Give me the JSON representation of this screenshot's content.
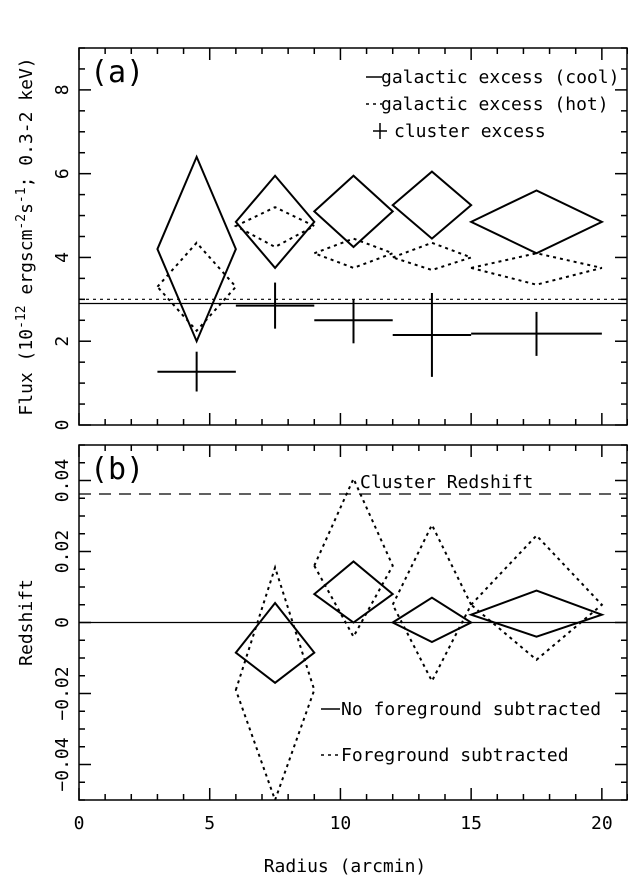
{
  "x_axis": {
    "label": "Radius (arcmin)",
    "range": [
      0,
      21
    ],
    "ticks": [
      0,
      5,
      10,
      15,
      20
    ],
    "tick_labels": [
      "0",
      "5",
      "10",
      "15",
      "20"
    ]
  },
  "chart_data": [
    {
      "type": "scatter",
      "panel": "(a)",
      "ylabel": "Flux (10^-12 ergscm^-2s^-1; 0.3-2 keV)",
      "xlim": [
        0,
        21
      ],
      "ylim": [
        0,
        9
      ],
      "yticks": [
        0,
        2,
        4,
        6,
        8
      ],
      "ytick_labels": [
        "0",
        "2",
        "4",
        "6",
        "8"
      ],
      "legend": {
        "placement": "top-right",
        "entries": [
          "galactic excess (cool)",
          "galactic excess (hot)",
          "cluster excess"
        ]
      },
      "reference_lines": [
        {
          "y": 2.9,
          "style": "solid"
        },
        {
          "y": 3.0,
          "style": "dotted"
        }
      ],
      "series": [
        {
          "name": "galactic excess (cool)",
          "style": "solid",
          "marker": "diamond",
          "points": [
            {
              "x": 4.5,
              "xerr": 1.5,
              "y": 4.2,
              "ylo": 2.0,
              "yhi": 6.4
            },
            {
              "x": 7.5,
              "xerr": 1.5,
              "y": 4.85,
              "ylo": 3.75,
              "yhi": 5.95
            },
            {
              "x": 10.5,
              "xerr": 1.5,
              "y": 5.1,
              "ylo": 4.25,
              "yhi": 5.95
            },
            {
              "x": 13.5,
              "xerr": 1.5,
              "y": 5.25,
              "ylo": 4.45,
              "yhi": 6.05
            },
            {
              "x": 17.5,
              "xerr": 2.5,
              "y": 4.85,
              "ylo": 4.1,
              "yhi": 5.6
            }
          ]
        },
        {
          "name": "galactic excess (hot)",
          "style": "dotted",
          "marker": "diamond",
          "points": [
            {
              "x": 4.5,
              "xerr": 1.5,
              "y": 3.3,
              "ylo": 2.25,
              "yhi": 4.35
            },
            {
              "x": 7.5,
              "xerr": 1.5,
              "y": 4.75,
              "ylo": 4.25,
              "yhi": 5.2
            },
            {
              "x": 10.5,
              "xerr": 1.5,
              "y": 4.1,
              "ylo": 3.75,
              "yhi": 4.45
            },
            {
              "x": 13.5,
              "xerr": 1.5,
              "y": 4.0,
              "ylo": 3.7,
              "yhi": 4.35
            },
            {
              "x": 17.5,
              "xerr": 2.5,
              "y": 3.75,
              "ylo": 3.35,
              "yhi": 4.1
            }
          ]
        },
        {
          "name": "cluster excess",
          "style": "solid",
          "marker": "cross",
          "points": [
            {
              "x": 4.5,
              "xerr": 1.5,
              "y": 1.27,
              "ylo": 0.8,
              "yhi": 1.75
            },
            {
              "x": 7.5,
              "xerr": 1.5,
              "y": 2.85,
              "ylo": 2.3,
              "yhi": 3.4
            },
            {
              "x": 10.5,
              "xerr": 1.5,
              "y": 2.5,
              "ylo": 1.95,
              "yhi": 3.0
            },
            {
              "x": 13.5,
              "xerr": 1.5,
              "y": 2.15,
              "ylo": 1.15,
              "yhi": 3.15
            },
            {
              "x": 17.5,
              "xerr": 2.5,
              "y": 2.18,
              "ylo": 1.65,
              "yhi": 2.7
            }
          ]
        }
      ]
    },
    {
      "type": "scatter",
      "panel": "(b)",
      "ylabel": "Redshift",
      "xlim": [
        0,
        21
      ],
      "ylim": [
        -0.05,
        0.05
      ],
      "yticks": [
        -0.04,
        -0.02,
        0,
        0.02,
        0.04
      ],
      "ytick_labels": [
        "−0.04",
        "−0.02",
        "0",
        "0.02",
        "0.04"
      ],
      "legend": {
        "placement": "bottom-right",
        "entries": [
          "No foreground subtracted",
          "Foreground subtracted"
        ]
      },
      "reference_lines": [
        {
          "y": 0,
          "style": "solid"
        },
        {
          "y": 0.0362,
          "style": "dashed",
          "label": "Cluster Redshift"
        }
      ],
      "series": [
        {
          "name": "No foreground subtracted",
          "style": "solid",
          "marker": "diamond",
          "points": [
            {
              "x": 7.5,
              "xerr": 1.5,
              "y": -0.0085,
              "ylo": -0.017,
              "yhi": 0.0055
            },
            {
              "x": 10.5,
              "xerr": 1.5,
              "y": 0.008,
              "ylo": 0.0,
              "yhi": 0.0172
            },
            {
              "x": 13.5,
              "xerr": 1.5,
              "y": 0.0,
              "ylo": -0.0055,
              "yhi": 0.007
            },
            {
              "x": 17.5,
              "xerr": 2.5,
              "y": 0.0022,
              "ylo": -0.004,
              "yhi": 0.009
            }
          ]
        },
        {
          "name": "Foreground subtracted",
          "style": "dotted",
          "marker": "diamond",
          "points": [
            {
              "x": 7.5,
              "xerr": 1.5,
              "y": -0.019,
              "ylo": -0.05,
              "yhi": 0.0155
            },
            {
              "x": 10.5,
              "xerr": 1.5,
              "y": 0.016,
              "ylo": -0.004,
              "yhi": 0.0405
            },
            {
              "x": 13.5,
              "xerr": 1.5,
              "y": 0.005,
              "ylo": -0.0165,
              "yhi": 0.0275
            },
            {
              "x": 17.5,
              "xerr": 2.5,
              "y": 0.005,
              "ylo": -0.0105,
              "yhi": 0.0245
            }
          ]
        }
      ]
    }
  ]
}
